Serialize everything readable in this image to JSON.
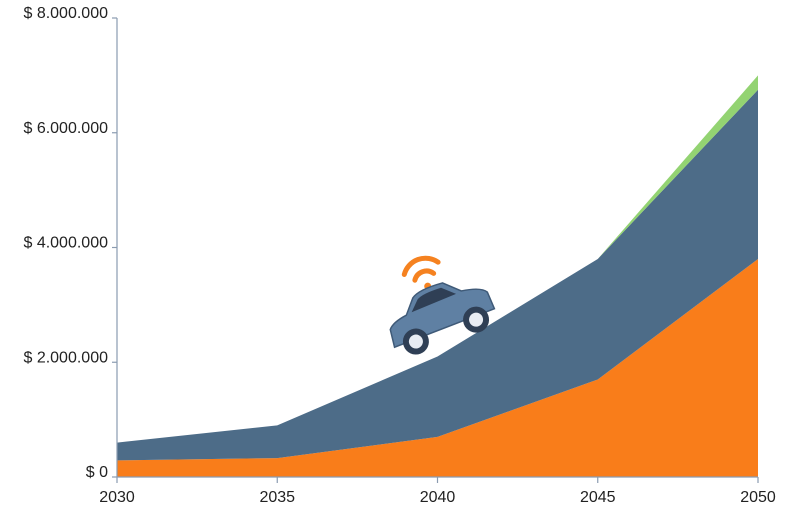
{
  "chart_data": {
    "type": "stacked-area",
    "x": [
      2030,
      2035,
      2040,
      2045,
      2050
    ],
    "xlim": [
      2030,
      2050
    ],
    "xticks": [
      2030,
      2035,
      2040,
      2045,
      2050
    ],
    "ylim": [
      0,
      8000000
    ],
    "yticks": [
      {
        "value": 0,
        "label": "$ 0"
      },
      {
        "value": 2000000,
        "label": "$ 2.000.000"
      },
      {
        "value": 4000000,
        "label": "$ 4.000.000"
      },
      {
        "value": 6000000,
        "label": "$ 6.000.000"
      },
      {
        "value": 8000000,
        "label": "$ 8.000.000"
      }
    ],
    "series": [
      {
        "color": "#f97d1a",
        "values": [
          290000,
          330000,
          700000,
          1700000,
          3800000
        ]
      },
      {
        "color": "#4d6c88",
        "values": [
          310000,
          570000,
          1400000,
          2100000,
          2950000
        ]
      },
      {
        "color": "#93d372",
        "values": [
          0,
          0,
          0,
          0,
          250000
        ]
      }
    ]
  }
}
